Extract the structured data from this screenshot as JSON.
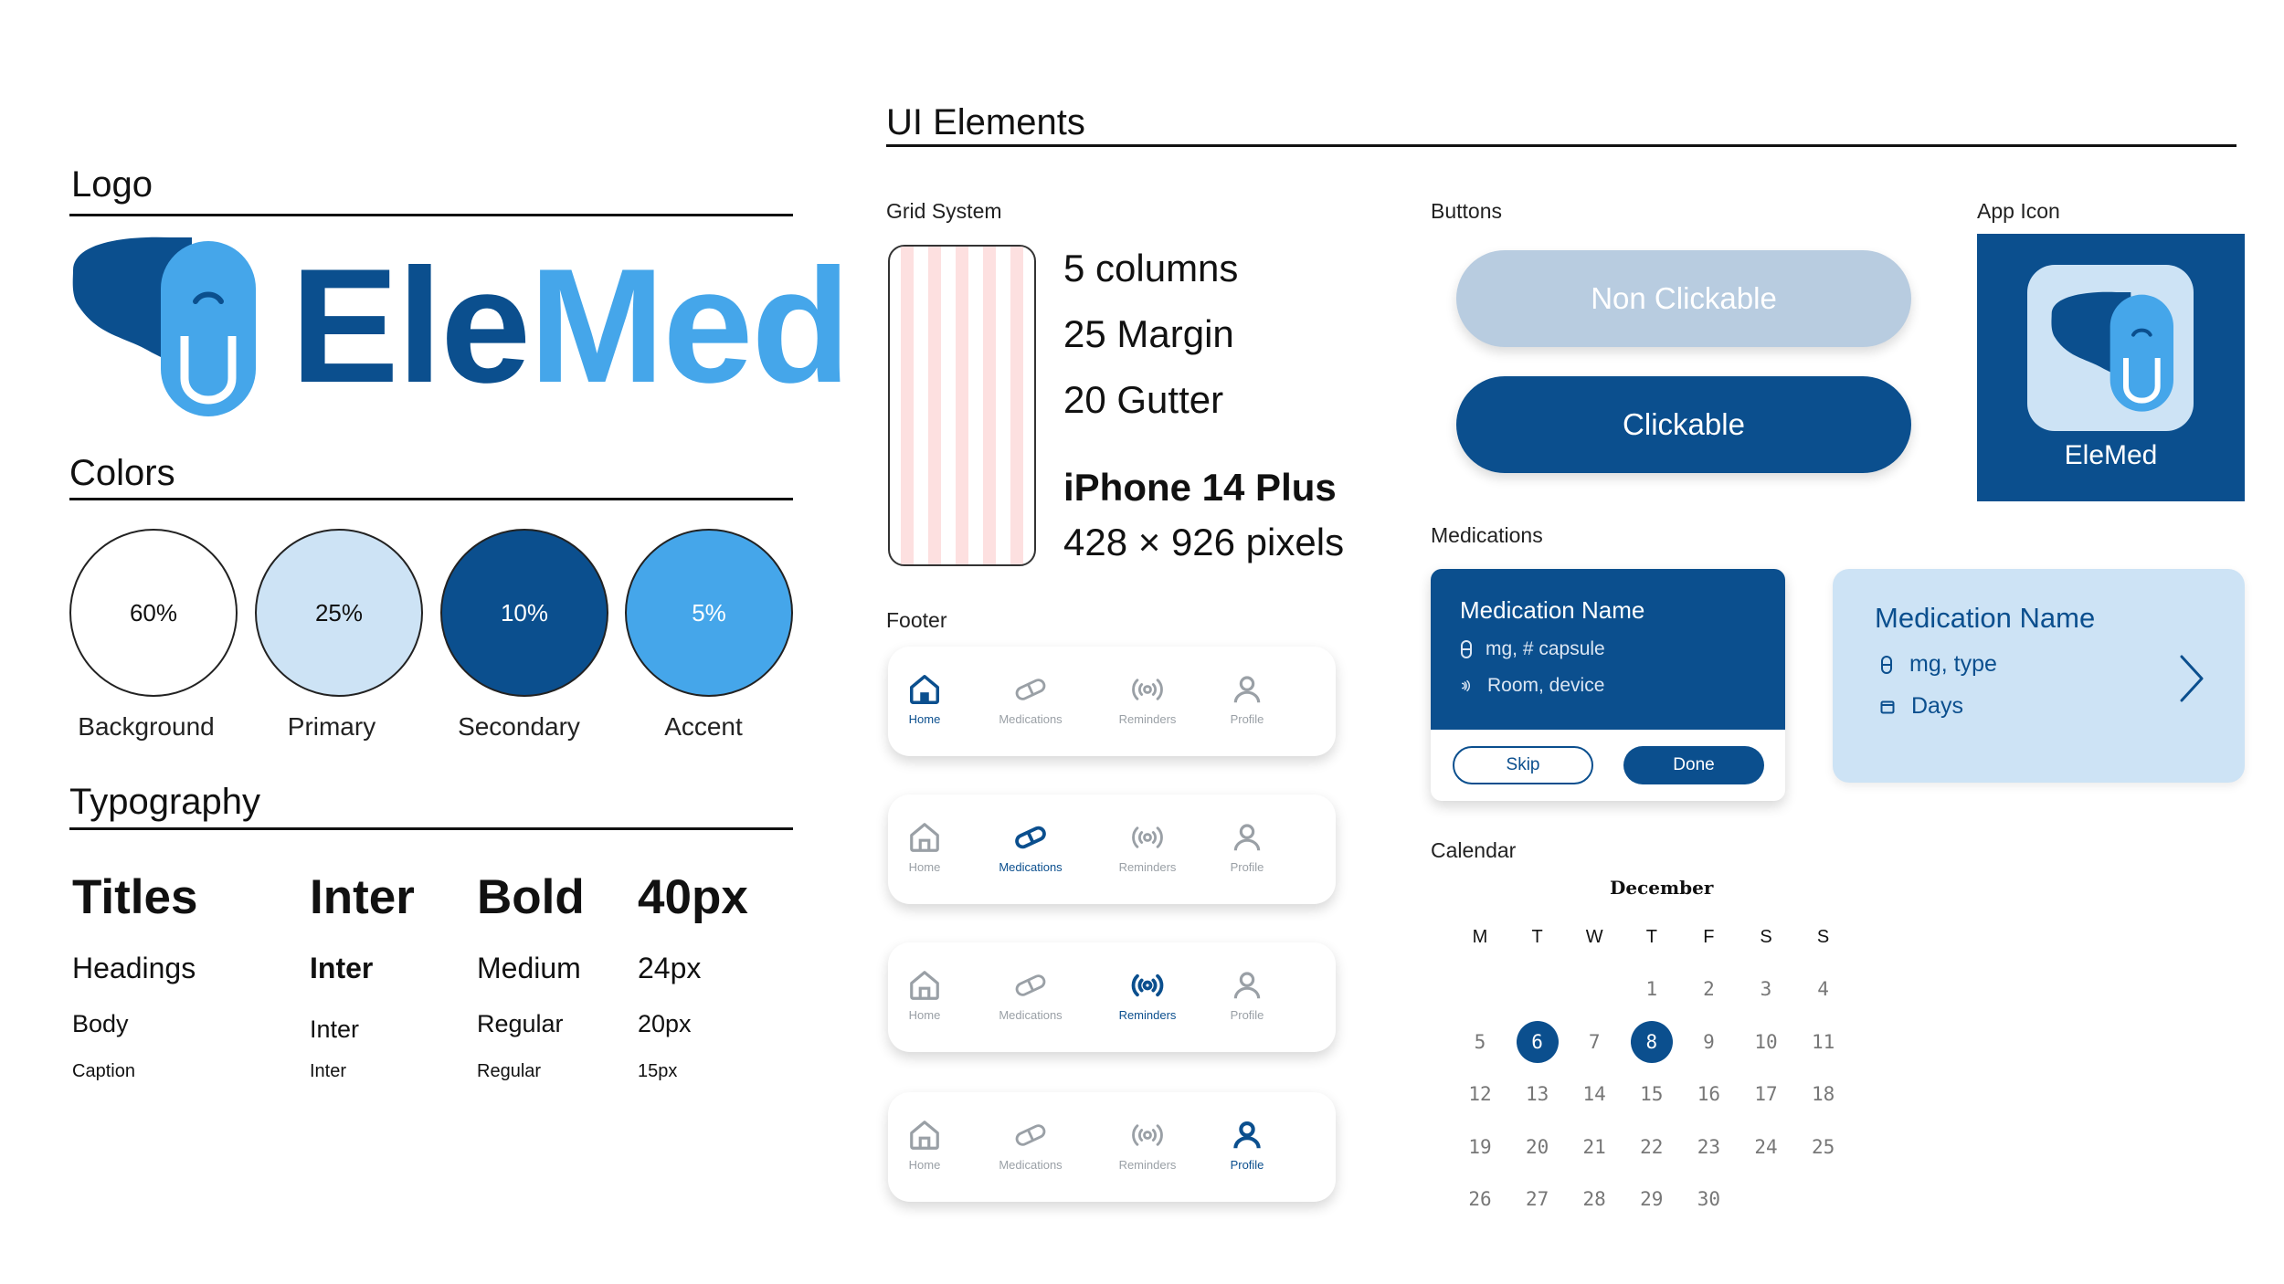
{
  "sections": {
    "logo": "Logo",
    "colors": "Colors",
    "typography": "Typography",
    "ui_elements": "UI Elements"
  },
  "logo": {
    "part1": "Ele",
    "part2": "Med"
  },
  "colors": [
    {
      "percent": "60%",
      "name": "Background",
      "hex": "#ffffff"
    },
    {
      "percent": "25%",
      "name": "Primary",
      "hex": "#cde3f5"
    },
    {
      "percent": "10%",
      "name": "Secondary",
      "hex": "#0b4f8e"
    },
    {
      "percent": "5%",
      "name": "Accent",
      "hex": "#45a6ea"
    }
  ],
  "typography": [
    {
      "role": "Titles",
      "font": "Inter",
      "weight": "Bold",
      "size": "40px"
    },
    {
      "role": "Headings",
      "font": "Inter",
      "weight": "Medium",
      "size": "24px"
    },
    {
      "role": "Body",
      "font": "Inter",
      "weight": "Regular",
      "size": "20px"
    },
    {
      "role": "Caption",
      "font": "Inter",
      "weight": "Regular",
      "size": "15px"
    }
  ],
  "grid": {
    "label": "Grid System",
    "columns": "5 columns",
    "margin": "25 Margin",
    "gutter": "20 Gutter",
    "device": "iPhone 14 Plus",
    "pixels": "428 × 926 pixels"
  },
  "footer": {
    "label": "Footer",
    "items": [
      "Home",
      "Medications",
      "Reminders",
      "Profile"
    ]
  },
  "buttons": {
    "label": "Buttons",
    "disabled": "Non Clickable",
    "primary": "Clickable"
  },
  "app_icon": {
    "label": "App Icon",
    "name": "EleMed"
  },
  "medications": {
    "label": "Medications",
    "card1": {
      "title": "Medication Name",
      "line1": "mg, # capsule",
      "line2": "Room, device",
      "skip": "Skip",
      "done": "Done"
    },
    "card2": {
      "title": "Medication Name",
      "line1": "mg, type",
      "line2": "Days"
    }
  },
  "calendar": {
    "label": "Calendar",
    "month": "December",
    "weekdays": [
      "M",
      "T",
      "W",
      "T",
      "F",
      "S",
      "S"
    ],
    "weeks": [
      [
        "",
        "",
        "",
        "1",
        "2",
        "3",
        "4"
      ],
      [
        "5",
        "6",
        "7",
        "8",
        "9",
        "10",
        "11"
      ],
      [
        "12",
        "13",
        "14",
        "15",
        "16",
        "17",
        "18"
      ],
      [
        "19",
        "20",
        "21",
        "22",
        "23",
        "24",
        "25"
      ],
      [
        "26",
        "27",
        "28",
        "29",
        "30",
        "",
        ""
      ]
    ],
    "selected": [
      "6",
      "8"
    ]
  }
}
